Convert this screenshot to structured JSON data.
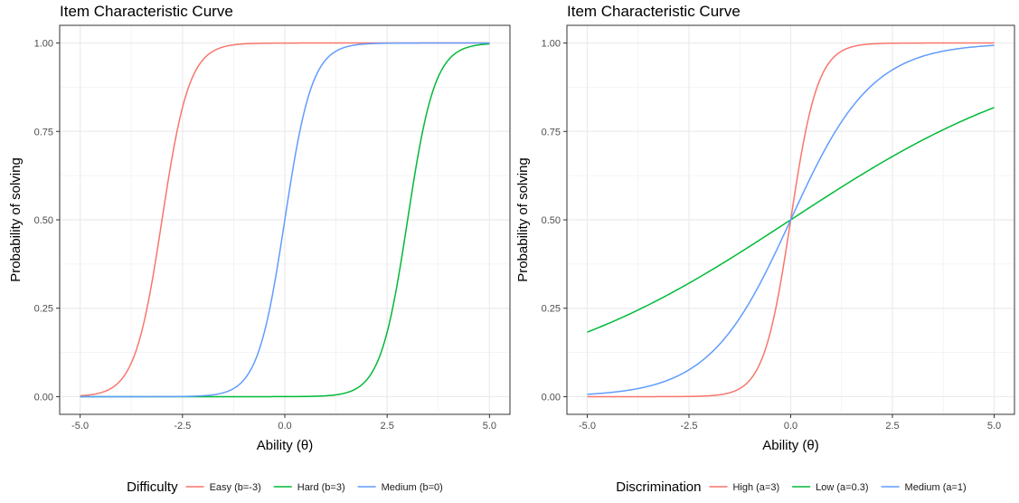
{
  "chart_data": [
    {
      "type": "line",
      "title": "Item Characteristic Curve",
      "xlabel": "Ability (θ)",
      "ylabel": "Probability of solving",
      "xlim": [
        -5,
        5
      ],
      "ylim": [
        0,
        1
      ],
      "x_ticks": [
        "-5.0",
        "-2.5",
        "0.0",
        "2.5",
        "5.0"
      ],
      "y_ticks": [
        "0.00",
        "0.25",
        "0.50",
        "0.75",
        "1.00"
      ],
      "grid": true,
      "legend": {
        "title": "Difficulty",
        "position": "bottom",
        "entries": [
          "Easy (b=-3)",
          "Hard (b=3)",
          "Medium (b=0)"
        ]
      },
      "series": [
        {
          "name": "Easy (b=-3)",
          "a": 3,
          "b": -3,
          "color": "#F8766D"
        },
        {
          "name": "Hard (b=3)",
          "a": 3,
          "b": 3,
          "color": "#00BA38"
        },
        {
          "name": "Medium (b=0)",
          "a": 3,
          "b": 0,
          "color": "#619CFF"
        }
      ]
    },
    {
      "type": "line",
      "title": "Item Characteristic Curve",
      "xlabel": "Ability (θ)",
      "ylabel": "Probability of solving",
      "xlim": [
        -5,
        5
      ],
      "ylim": [
        0,
        1
      ],
      "x_ticks": [
        "-5.0",
        "-2.5",
        "0.0",
        "2.5",
        "5.0"
      ],
      "y_ticks": [
        "0.00",
        "0.25",
        "0.50",
        "0.75",
        "1.00"
      ],
      "grid": true,
      "legend": {
        "title": "Discrimination",
        "position": "bottom",
        "entries": [
          "High (a=3)",
          "Low (a=0.3)",
          "Medium (a=1)"
        ]
      },
      "series": [
        {
          "name": "High (a=3)",
          "a": 3,
          "b": 0,
          "color": "#F8766D"
        },
        {
          "name": "Low (a=0.3)",
          "a": 0.3,
          "b": 0,
          "color": "#00BA38"
        },
        {
          "name": "Medium (a=1)",
          "a": 1,
          "b": 0,
          "color": "#619CFF"
        }
      ]
    }
  ]
}
